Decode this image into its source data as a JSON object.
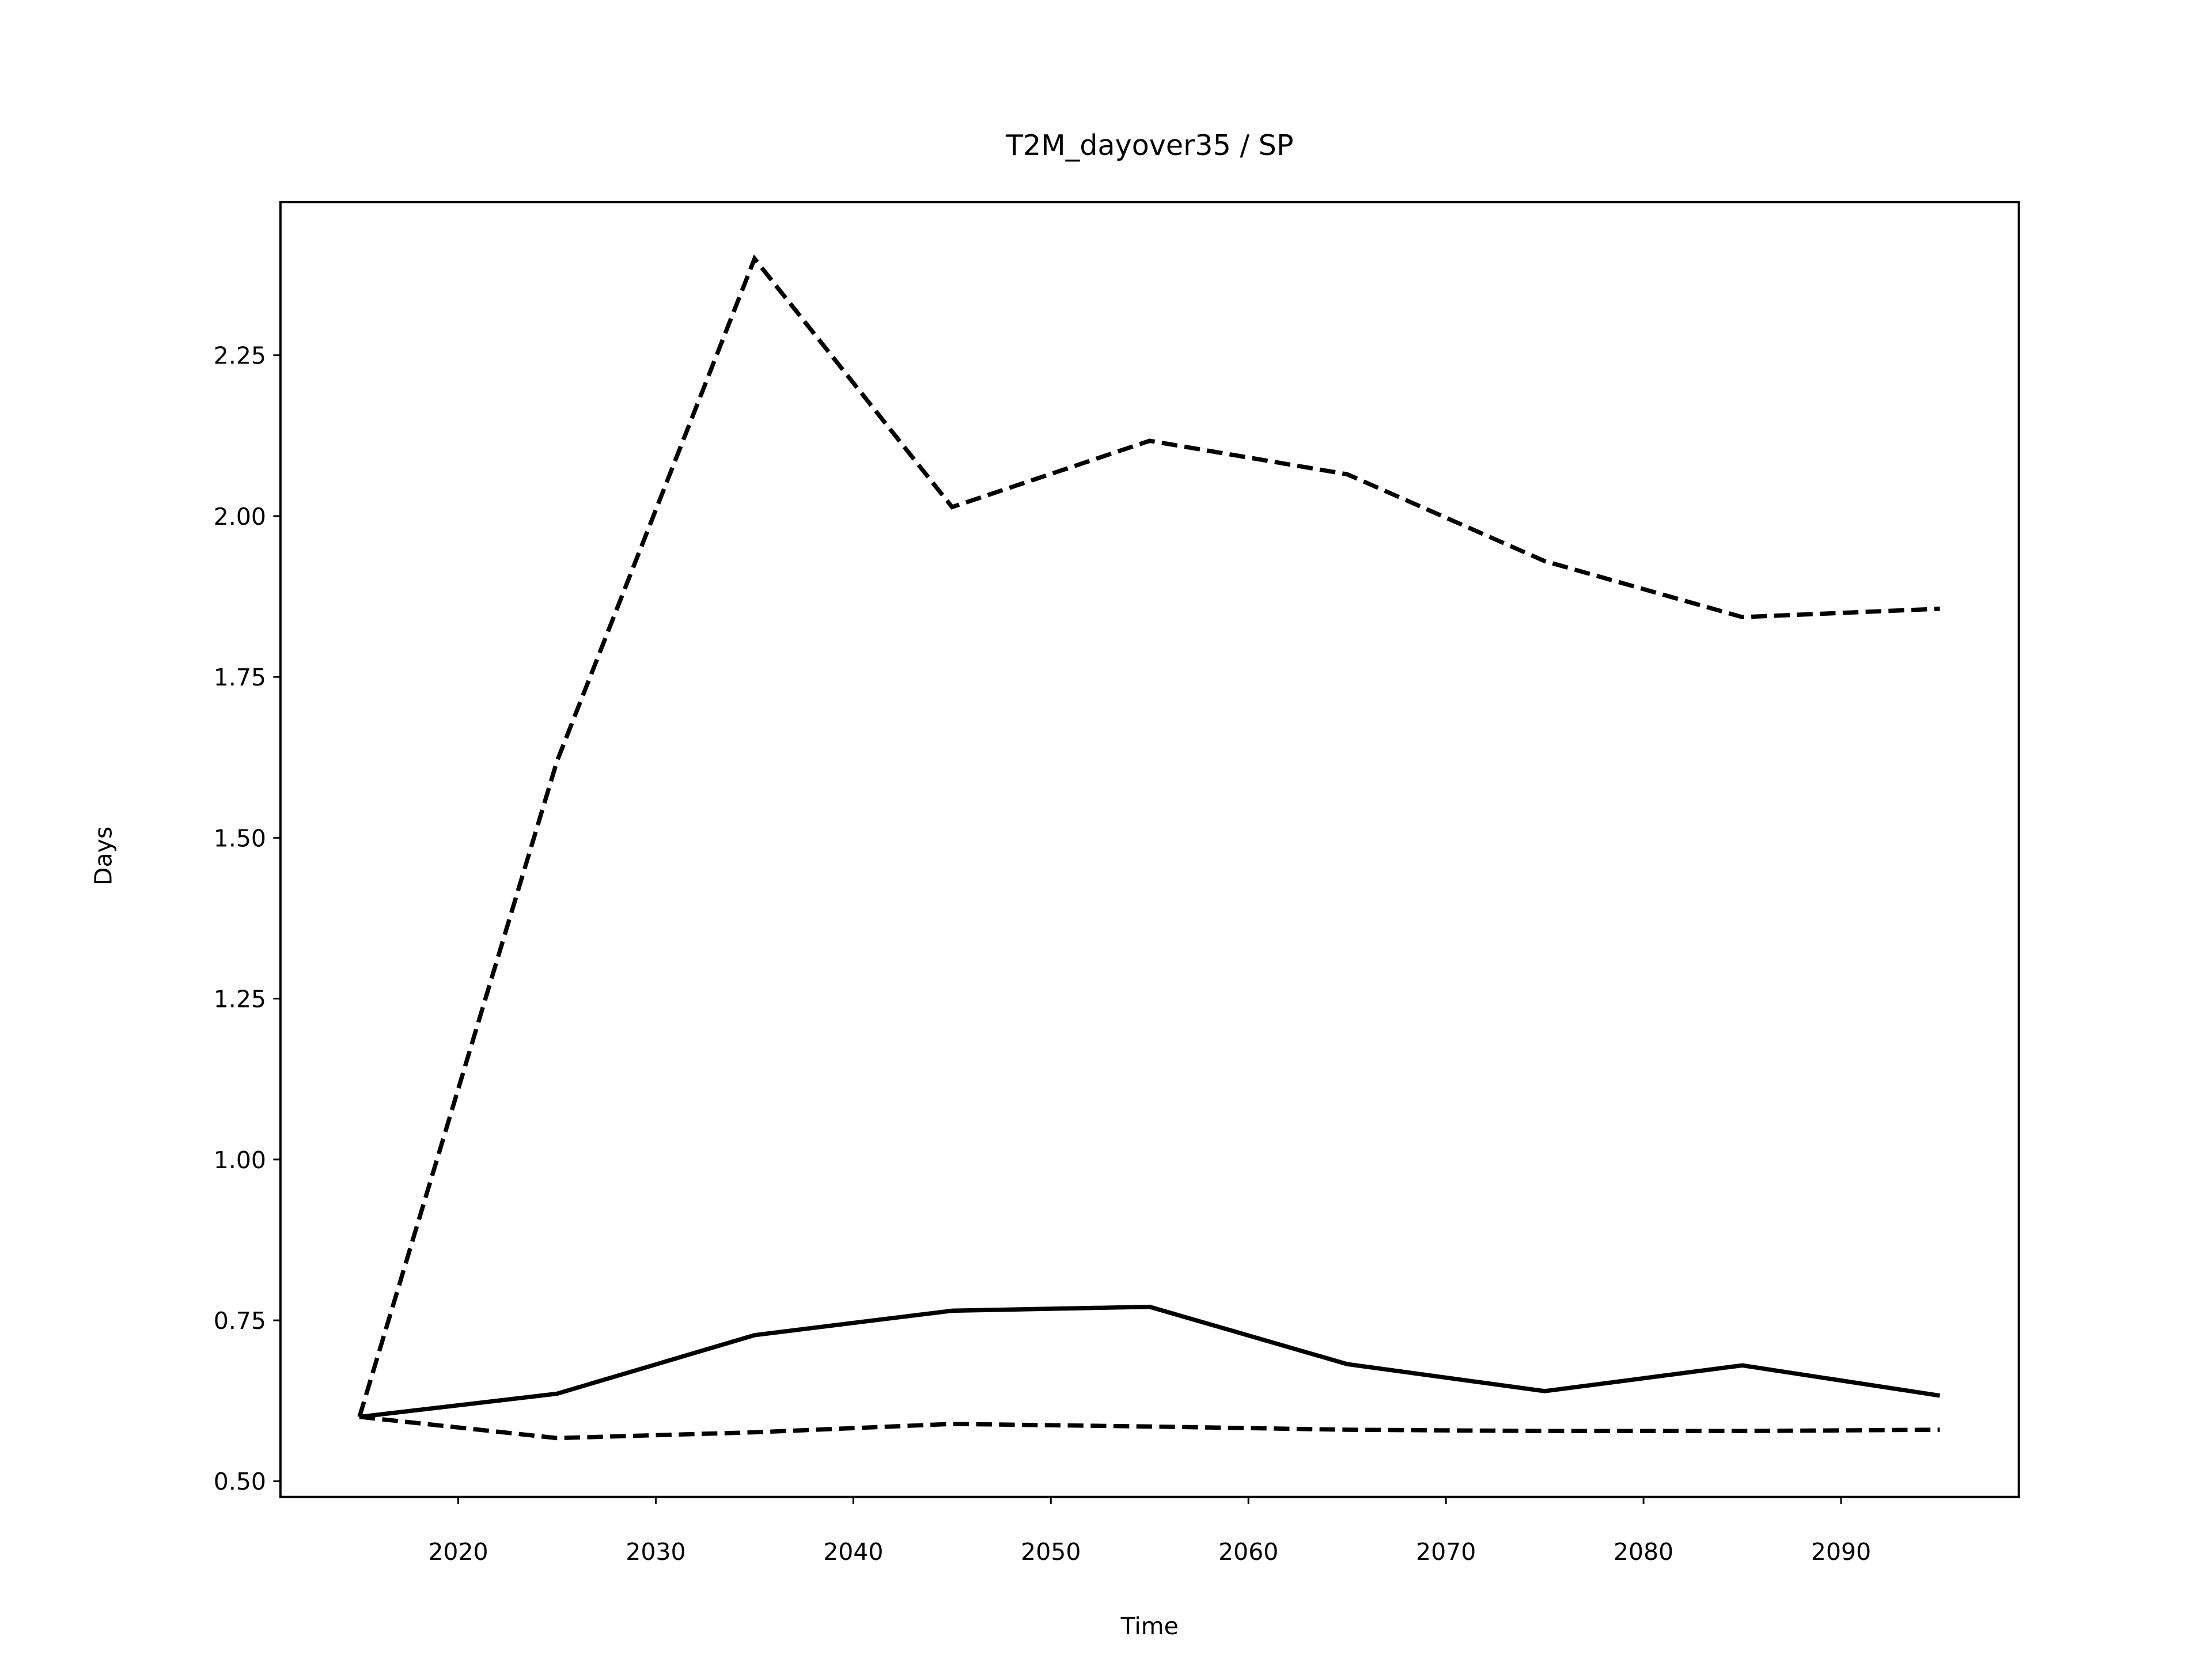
{
  "chart_data": {
    "type": "line",
    "title": "T2M_dayover35 / SP",
    "x_label": "Time",
    "y_label": "Days",
    "x": [
      2015,
      2025,
      2035,
      2045,
      2055,
      2065,
      2075,
      2085,
      2095
    ],
    "series": [
      {
        "color": "#000000",
        "linestyle": "solid",
        "values": [
          0.6,
          0.636,
          0.727,
          0.765,
          0.771,
          0.682,
          0.64,
          0.68,
          0.633
        ]
      },
      {
        "color": "#000000",
        "linestyle": "dashed",
        "values": [
          0.6,
          1.619,
          2.4,
          2.014,
          2.117,
          2.065,
          1.93,
          1.843,
          1.856
        ]
      },
      {
        "color": "#000000",
        "linestyle": "dashed",
        "values": [
          0.6,
          0.567,
          0.576,
          0.589,
          0.585,
          0.58,
          0.578,
          0.578,
          0.58
        ]
      }
    ],
    "xlim": [
      2011,
      2099
    ],
    "ylim": [
      0.4755,
      2.488
    ],
    "xticks": [
      2020,
      2030,
      2040,
      2050,
      2060,
      2070,
      2080,
      2090
    ],
    "yticks": [
      {
        "value": 0.5,
        "label": "0.50"
      },
      0.75,
      {
        "value": 1.0,
        "label": "1.00"
      },
      1.25,
      {
        "value": 1.5,
        "label": "1.50"
      },
      1.75,
      {
        "value": 2.0,
        "label": "2.00"
      },
      2.25
    ],
    "grid": false
  }
}
